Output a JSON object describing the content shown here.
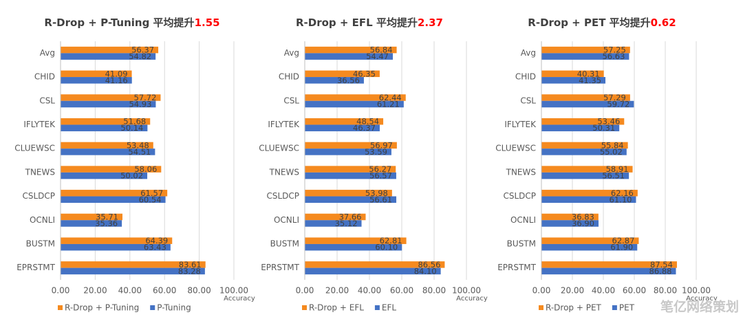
{
  "chart_data": [
    {
      "type": "hbar",
      "title": "R-Drop + P-Tuning 平均提升",
      "title_highlight": "1.55",
      "highlight_color": "#ff0000",
      "categories": [
        "Avg",
        "CHID",
        "CSL",
        "IFLYTEK",
        "CLUEWSC",
        "TNEWS",
        "CSLDCP",
        "OCNLI",
        "BUSTM",
        "EPRSTMT"
      ],
      "series": [
        {
          "name": "R-Drop + P-Tuning",
          "color": "#f58a1f",
          "values": [
            56.37,
            41.09,
            57.72,
            51.68,
            53.48,
            58.06,
            61.57,
            35.71,
            64.39,
            83.61
          ],
          "value_labels": [
            "56.37",
            "41.09",
            "57.72",
            "51.68",
            "53.48",
            "58.06",
            "61.57",
            "35.71",
            "64.39",
            "83.61"
          ]
        },
        {
          "name": "P-Tuning",
          "color": "#4472c4",
          "values": [
            54.82,
            41.16,
            54.93,
            50.14,
            54.51,
            50.02,
            60.54,
            35.36,
            63.43,
            83.28
          ],
          "value_labels": [
            "54.82",
            "41.16",
            "54.93",
            "50.14",
            "54.51",
            "50.02",
            "60.54",
            "35.36",
            "63.43",
            "83.28"
          ]
        }
      ],
      "xlabel": "Accuracy",
      "xlim": [
        0,
        100
      ],
      "xticks": [
        {
          "value": 0,
          "label": "0.00"
        },
        {
          "value": 20,
          "label": "20.00"
        },
        {
          "value": 40,
          "label": "40.00"
        },
        {
          "value": 60,
          "label": "60.00"
        },
        {
          "value": 80,
          "label": "80.00"
        },
        {
          "value": 100,
          "label": "100.00"
        }
      ],
      "grid": true,
      "legend": "bottom"
    },
    {
      "type": "hbar",
      "title": "R-Drop + EFL 平均提升",
      "title_highlight": "2.37",
      "highlight_color": "#ff0000",
      "categories": [
        "Avg",
        "CHID",
        "CSL",
        "IFLYTEK",
        "CLUEWSC",
        "TNEWS",
        "CSLDCP",
        "OCNLI",
        "BUSTM",
        "EPRSTMT"
      ],
      "series": [
        {
          "name": "R-Drop + EFL",
          "color": "#f58a1f",
          "values": [
            56.84,
            46.35,
            62.44,
            48.54,
            56.97,
            56.27,
            53.98,
            37.66,
            62.81,
            86.56
          ],
          "value_labels": [
            "56.84",
            "46.35",
            "62.44",
            "48.54",
            "56.97",
            "56.27",
            "53.98",
            "37.66",
            "62.81",
            "86.56"
          ]
        },
        {
          "name": "EFL",
          "color": "#4472c4",
          "values": [
            54.47,
            36.56,
            61.21,
            46.37,
            53.59,
            56.57,
            56.61,
            35.12,
            60.1,
            84.1
          ],
          "value_labels": [
            "54.47",
            "36.56",
            "61.21",
            "46.37",
            "53.59",
            "56.57",
            "56.61",
            "35.12",
            "60.10",
            "84.10"
          ]
        }
      ],
      "xlabel": "Accuracy",
      "xlim": [
        0,
        100
      ],
      "xticks": [
        {
          "value": 0,
          "label": "0.00"
        },
        {
          "value": 20,
          "label": "20.00"
        },
        {
          "value": 40,
          "label": "40.00"
        },
        {
          "value": 60,
          "label": "60.00"
        },
        {
          "value": 80,
          "label": "80.00"
        },
        {
          "value": 100,
          "label": "100.00"
        }
      ],
      "grid": true,
      "legend": "bottom"
    },
    {
      "type": "hbar",
      "title": "R-Drop + PET 平均提升",
      "title_highlight": "0.62",
      "highlight_color": "#ff0000",
      "categories": [
        "Avg",
        "CHID",
        "CSL",
        "IFLYTEK",
        "CLUEWSC",
        "TNEWS",
        "CSLDCP",
        "OCNLI",
        "BUSTM",
        "EPRSTMT"
      ],
      "series": [
        {
          "name": "R-Drop + PET",
          "color": "#f58a1f",
          "values": [
            57.25,
            40.31,
            57.29,
            53.46,
            55.84,
            58.91,
            62.16,
            36.83,
            62.87,
            87.54
          ],
          "value_labels": [
            "57.25",
            "40.31",
            "57.29",
            "53.46",
            "55.84",
            "58.91",
            "62.16",
            "36.83",
            "62.87",
            "87.54"
          ]
        },
        {
          "name": "PET",
          "color": "#4472c4",
          "values": [
            56.63,
            41.35,
            59.72,
            50.31,
            55.02,
            56.51,
            61.1,
            36.9,
            61.9,
            86.88
          ],
          "value_labels": [
            "56.63",
            "41.35",
            "59.72",
            "50.31",
            "55.02",
            "56.51",
            "61.10",
            "36.90",
            "61.90",
            "86.88"
          ]
        }
      ],
      "xlabel": "Accuracy",
      "xlim": [
        0,
        100
      ],
      "xticks": [
        {
          "value": 0,
          "label": "0.00"
        },
        {
          "value": 20,
          "label": "20.00"
        },
        {
          "value": 40,
          "label": "40.00"
        },
        {
          "value": 60,
          "label": "60.00"
        },
        {
          "value": 80,
          "label": "80.00"
        },
        {
          "value": 100,
          "label": "100.00"
        }
      ],
      "grid": true,
      "legend": "bottom"
    }
  ],
  "watermark": "笔亿网络策划"
}
